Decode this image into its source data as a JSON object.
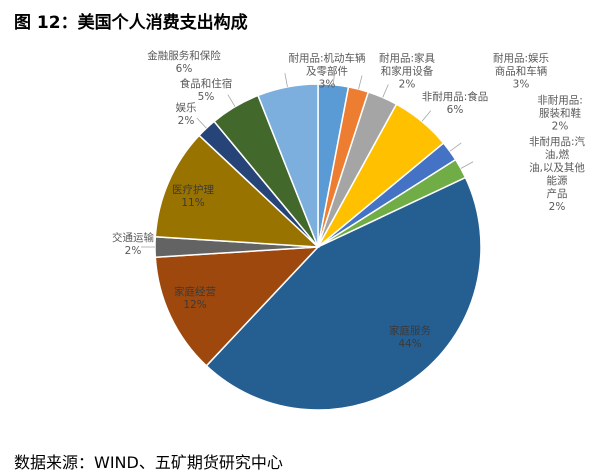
{
  "chart_data": {
    "type": "pie",
    "title": "图 12：美国个人消费支出构成",
    "source": "数据来源：WIND、五矿期货研究中心",
    "categories": [
      "耐用品:机动车辆\n及零部件",
      "耐用品:家具\n和家用设备",
      "耐用品:娱乐\n商品和车辆",
      "非耐用品:食品",
      "非耐用品:服装和鞋",
      "非耐用品:汽油,燃\n油,以及其他能源\n产品",
      "家庭服务",
      "家庭经营",
      "交通运输",
      "医疗护理",
      "娱乐",
      "食品和住宿",
      "金融服务和保险"
    ],
    "values": [
      3,
      2,
      3,
      6,
      2,
      2,
      44,
      12,
      2,
      11,
      2,
      5,
      6
    ],
    "value_labels": [
      "3%",
      "2%",
      "3%",
      "6%",
      "2%",
      "2%",
      "44%",
      "12%",
      "2%",
      "11%",
      "2%",
      "5%",
      "6%"
    ],
    "colors": [
      "#5b9bd5",
      "#ed7d31",
      "#a5a5a5",
      "#ffc000",
      "#4472c4",
      "#70ad47",
      "#255e91",
      "#9e480e",
      "#636363",
      "#997300",
      "#264478",
      "#43682b",
      "#7cafdd"
    ]
  }
}
